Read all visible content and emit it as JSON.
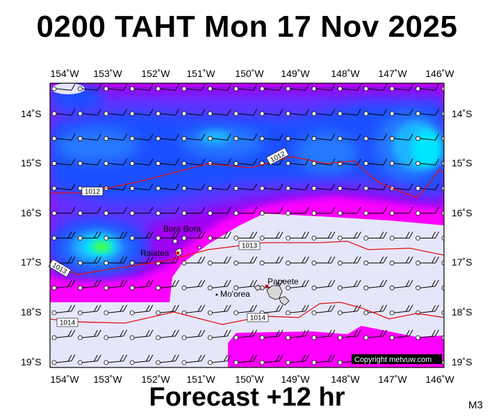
{
  "header": {
    "title": "0200 TAHT Mon 17 Nov 2025"
  },
  "footer": {
    "forecast": "Forecast +12 hr",
    "code": "M3"
  },
  "map": {
    "lon_range": [
      -154.3,
      -145.9
    ],
    "lat_range": [
      -14.7,
      -19.05
    ],
    "lon_labels": [
      "154˚W",
      "153˚W",
      "152˚W",
      "151˚W",
      "150˚W",
      "149˚W",
      "148˚W",
      "147˚W",
      "146˚W"
    ],
    "lat_labels": [
      "14˚S",
      "15˚S",
      "16˚S",
      "17˚S",
      "18˚S",
      "19˚S"
    ],
    "colors": {
      "pale_lavender": "#e6e6fa",
      "magenta": "#ff00ff",
      "violet": "#a000f0",
      "blue_violet": "#6030ff",
      "blue": "#1e50ff",
      "royal_blue": "#2878ff",
      "light_blue": "#1eb4ff",
      "cyan": "#00e6ff",
      "lime": "#46ff46",
      "isobar": "#e01010"
    },
    "isobars": [
      {
        "value": "1012",
        "labels": [
          "1012",
          "1012"
        ]
      },
      {
        "value": "1013",
        "labels": [
          "1013",
          "1013"
        ]
      },
      {
        "value": "1014",
        "labels": [
          "1014",
          "1014"
        ]
      }
    ],
    "places": [
      {
        "name": "Bora Bora",
        "lon": -151.75,
        "lat": -16.5
      },
      {
        "name": "Raiatea",
        "lon": -151.45,
        "lat": -16.8
      },
      {
        "name": "Mo'orea",
        "lon": -149.85,
        "lat": -17.55
      },
      {
        "name": "Papeete",
        "lon": -149.57,
        "lat": -17.53
      }
    ],
    "copyright": "Copyright metvuw.com"
  }
}
